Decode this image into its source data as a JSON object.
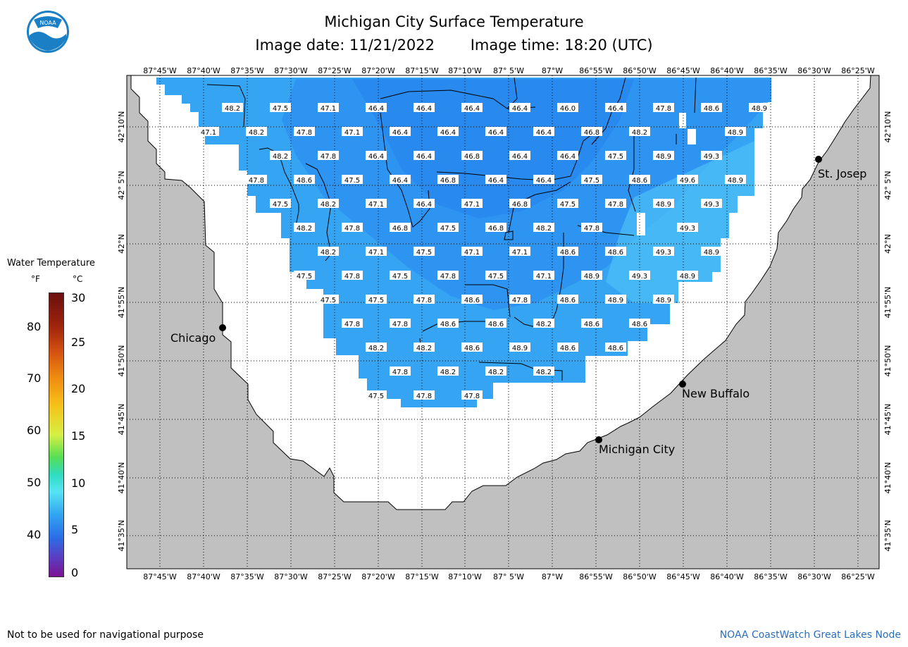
{
  "header": {
    "title": "Michigan City Surface Temperature",
    "image_date": "Image date: 11/21/2022",
    "image_time": "Image time: 18:20 (UTC)"
  },
  "logo": {
    "text": "NOAA",
    "icon": "noaa-logo-icon",
    "colors": {
      "blue": "#1a7fc4",
      "light": "#4aaee6"
    }
  },
  "legend": {
    "title": "Water Temperature",
    "unit_f": "°F",
    "unit_c": "°C",
    "f_ticks": [
      "80",
      "70",
      "60",
      "50",
      "40"
    ],
    "c_ticks": [
      "30",
      "25",
      "20",
      "15",
      "10",
      "5",
      "0"
    ]
  },
  "map": {
    "lon_labels": [
      "87°45'W",
      "87°40'W",
      "87°35'W",
      "87°30'W",
      "87°25'W",
      "87°20'W",
      "87°15'W",
      "87°10'W",
      "87° 5'W",
      "87°W",
      "86°55'W",
      "86°50'W",
      "86°45'W",
      "86°40'W",
      "86°35'W",
      "86°30'W",
      "86°25'W"
    ],
    "lat_labels": [
      "42°10'N",
      "42° 5'N",
      "42°N",
      "41°55'N",
      "41°50'N",
      "41°45'N",
      "41°40'N",
      "41°35'N"
    ],
    "cities": [
      "St. Josep",
      "Chicago",
      "New Buffalo",
      "Michigan City"
    ],
    "colors": {
      "land": "#c0c0c0",
      "water_cold": "#2b8ef0",
      "water_warm": "#4cc0f6"
    },
    "temp_rows": [
      [
        "48.2",
        "47.5",
        "47.1",
        "46.4",
        "46.4",
        "46.4",
        "46.4",
        "46.0",
        "46.4",
        "47.8",
        "48.6",
        "48.9"
      ],
      [
        "47.1",
        "48.2",
        "47.8",
        "47.1",
        "46.4",
        "46.4",
        "46.4",
        "46.4",
        "46.8",
        "48.2",
        "48.9"
      ],
      [
        "48.2",
        "47.8",
        "46.4",
        "46.4",
        "46.8",
        "46.4",
        "46.4",
        "47.5",
        "48.9",
        "49.3"
      ],
      [
        "47.8",
        "48.6",
        "47.5",
        "46.4",
        "46.8",
        "46.4",
        "46.4",
        "47.5",
        "48.6",
        "49.6",
        "48.9"
      ],
      [
        "47.5",
        "48.2",
        "47.1",
        "46.4",
        "47.1",
        "46.8",
        "47.5",
        "47.8",
        "48.9",
        "49.3"
      ],
      [
        "48.2",
        "47.8",
        "46.8",
        "47.5",
        "46.8",
        "48.2",
        "47.8",
        "49.3"
      ],
      [
        "48.2",
        "47.1",
        "47.5",
        "47.1",
        "47.1",
        "48.6",
        "48.6",
        "49.3",
        "48.9"
      ],
      [
        "47.5",
        "47.8",
        "47.5",
        "47.8",
        "47.5",
        "47.1",
        "48.9",
        "49.3",
        "48.9"
      ],
      [
        "47.5",
        "47.5",
        "47.8",
        "48.6",
        "47.8",
        "48.6",
        "48.9",
        "48.9"
      ],
      [
        "47.8",
        "47.8",
        "48.6",
        "48.6",
        "48.2",
        "48.6",
        "48.6"
      ],
      [
        "48.2",
        "48.2",
        "48.6",
        "48.9",
        "48.6",
        "48.6"
      ],
      [
        "47.8",
        "48.2",
        "48.2",
        "48.2"
      ],
      [
        "47.5",
        "47.8",
        "47.8"
      ]
    ]
  },
  "footer": {
    "disclaimer": "Not to be used for navigational purpose",
    "credit": "NOAA CoastWatch Great Lakes Node"
  }
}
